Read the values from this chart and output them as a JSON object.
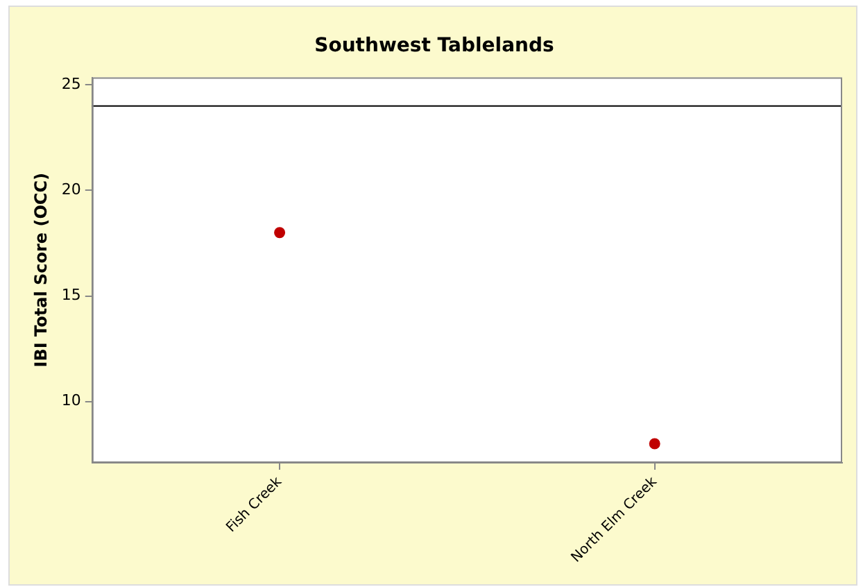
{
  "chart_data": {
    "type": "scatter",
    "title": "Southwest Tablelands",
    "ylabel": "IBI Total Score (OCC)",
    "categories": [
      "Fish Creek",
      "North Elm Creek"
    ],
    "series": [
      {
        "color": "#c00000",
        "values": [
          18,
          8
        ]
      }
    ],
    "ylim": [
      7.1,
      25.35
    ],
    "yticks": [
      10,
      15,
      20,
      25
    ],
    "grid": false,
    "legend": false,
    "marker": "circle",
    "ref_lines": [
      {
        "axis": "y",
        "value": 24,
        "color": "#000000"
      }
    ]
  }
}
